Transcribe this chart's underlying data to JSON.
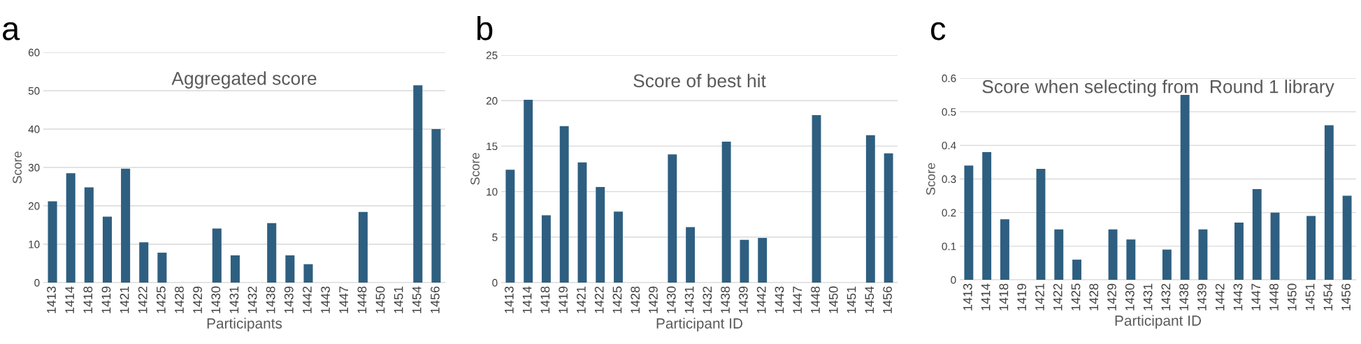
{
  "chart_data": [
    {
      "type": "bar",
      "title": "Aggregated score",
      "xlabel": "Participants",
      "ylabel": "Score",
      "annotations": [
        "a"
      ],
      "categories": [
        "1413",
        "1414",
        "1418",
        "1419",
        "1421",
        "1422",
        "1425",
        "1428",
        "1429",
        "1430",
        "1431",
        "1432",
        "1438",
        "1439",
        "1442",
        "1443",
        "1447",
        "1448",
        "1450",
        "1451",
        "1454",
        "1456"
      ],
      "values": [
        21.2,
        28.5,
        24.8,
        17.2,
        29.7,
        10.5,
        7.8,
        0,
        0,
        14.1,
        7.1,
        0,
        15.5,
        7.1,
        4.8,
        0,
        0,
        18.4,
        0,
        0,
        51.4,
        40
      ],
      "color": "#2e5f80",
      "ylim": [
        0,
        60
      ],
      "yticks": [
        0,
        10,
        20,
        30,
        40,
        50,
        60
      ],
      "grid": "y"
    },
    {
      "type": "bar",
      "title": "Score of best hit",
      "xlabel": "Participant ID",
      "ylabel": "Score",
      "annotations": [
        "b"
      ],
      "categories": [
        "1413",
        "1414",
        "1418",
        "1419",
        "1421",
        "1422",
        "1425",
        "1428",
        "1429",
        "1430",
        "1431",
        "1432",
        "1438",
        "1439",
        "1442",
        "1443",
        "1447",
        "1448",
        "1450",
        "1451",
        "1454",
        "1456"
      ],
      "values": [
        12.4,
        20.1,
        7.4,
        17.2,
        13.2,
        10.5,
        7.8,
        0,
        0,
        14.1,
        6.1,
        0,
        15.5,
        4.7,
        4.9,
        0,
        0,
        18.4,
        0,
        0,
        16.2,
        14.2
      ],
      "color": "#2e5f80",
      "ylim": [
        0,
        25
      ],
      "yticks": [
        0,
        5,
        10,
        15,
        20,
        25
      ],
      "grid": "y"
    },
    {
      "type": "bar",
      "title": "Score when selecting from  Round 1 library",
      "xlabel": "Participant ID",
      "ylabel": "Score",
      "annotations": [
        "c"
      ],
      "categories": [
        "1413",
        "1414",
        "1418",
        "1419",
        "1421",
        "1422",
        "1425",
        "1428",
        "1429",
        "1430",
        "1431",
        "1432",
        "1438",
        "1439",
        "1442",
        "1443",
        "1447",
        "1448",
        "1450",
        "1451",
        "1454",
        "1456"
      ],
      "values": [
        0.34,
        0.38,
        0.18,
        0,
        0.33,
        0.15,
        0.06,
        0,
        0.15,
        0.12,
        0,
        0.09,
        0.55,
        0.15,
        0,
        0.17,
        0.27,
        0.2,
        0,
        0.19,
        0.46,
        0.25
      ],
      "color": "#2e5f80",
      "ylim": [
        0,
        0.6
      ],
      "yticks": [
        0,
        0.1,
        0.2,
        0.3,
        0.4,
        0.5,
        0.6
      ],
      "grid": "y"
    }
  ]
}
